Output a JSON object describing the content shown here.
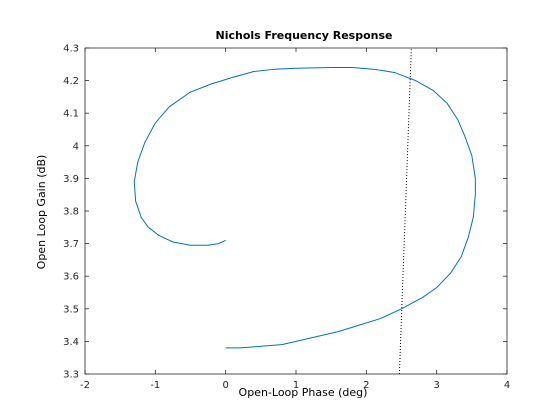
{
  "chart_data": {
    "type": "line",
    "title": "Nichols Frequency Response",
    "xlabel": "Open-Loop Phase (deg)",
    "ylabel": "Open Loop Gain (dB)",
    "xlim": [
      -2,
      4
    ],
    "ylim": [
      3.3,
      4.3
    ],
    "xticks": [
      -2,
      -1,
      0,
      1,
      2,
      3,
      4
    ],
    "yticks": [
      3.3,
      3.4,
      3.5,
      3.6,
      3.7,
      3.8,
      3.9,
      4,
      4.1,
      4.2,
      4.3
    ],
    "xtick_labels": [
      "-2",
      "-1",
      "0",
      "1",
      "2",
      "3",
      "4"
    ],
    "ytick_labels": [
      "3.3",
      "3.4",
      "3.5",
      "3.6",
      "3.7",
      "3.8",
      "3.9",
      "4",
      "4.1",
      "4.2",
      "4.3"
    ],
    "grid": false,
    "series": [
      {
        "style": "solid",
        "color": "#0072bd",
        "x": [
          0.0,
          0.2,
          0.5,
          0.8,
          1.0,
          1.3,
          1.6,
          1.9,
          2.2,
          2.5,
          2.8,
          3.0,
          3.2,
          3.35,
          3.45,
          3.52,
          3.55,
          3.55,
          3.5,
          3.4,
          3.3,
          3.15,
          2.95,
          2.7,
          2.4,
          2.1,
          1.8,
          1.5,
          1.0,
          0.7,
          0.4,
          0.1,
          -0.2,
          -0.5,
          -0.8,
          -1.0,
          -1.15,
          -1.25,
          -1.3,
          -1.28,
          -1.2,
          -1.1,
          -0.95,
          -0.75,
          -0.5,
          -0.25,
          -0.1,
          0.0
        ],
        "y": [
          3.38,
          3.38,
          3.385,
          3.39,
          3.4,
          3.415,
          3.43,
          3.45,
          3.47,
          3.5,
          3.535,
          3.565,
          3.61,
          3.66,
          3.72,
          3.78,
          3.85,
          3.9,
          3.97,
          4.03,
          4.08,
          4.13,
          4.17,
          4.2,
          4.225,
          4.235,
          4.24,
          4.24,
          4.238,
          4.235,
          4.228,
          4.21,
          4.19,
          4.165,
          4.12,
          4.07,
          4.01,
          3.95,
          3.89,
          3.83,
          3.78,
          3.75,
          3.725,
          3.705,
          3.695,
          3.695,
          3.7,
          3.71
        ]
      },
      {
        "style": "dotted",
        "color": "#000000",
        "x": [
          2.47,
          2.64
        ],
        "y": [
          3.3,
          4.3
        ]
      }
    ]
  }
}
